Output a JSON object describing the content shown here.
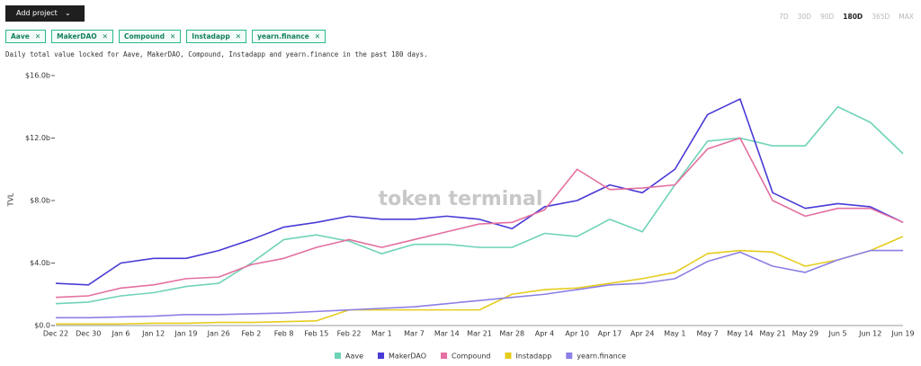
{
  "toolbar": {
    "add_project": "Add project",
    "ranges": [
      "7D",
      "30D",
      "90D",
      "180D",
      "365D",
      "MAX"
    ],
    "active_range": "180D"
  },
  "description": "Daily total value locked for Aave, MakerDAO, Compound, Instadapp and yearn.finance in the past 180 days.",
  "chart_data": {
    "type": "line",
    "ylabel": "TVL",
    "watermark": "token terminal",
    "grid": false,
    "categories": [
      "Dec 22",
      "Dec 30",
      "Jan 6",
      "Jan 12",
      "Jan 19",
      "Jan 26",
      "Feb 2",
      "Feb 8",
      "Feb 15",
      "Feb 22",
      "Mar 1",
      "Mar 7",
      "Mar 14",
      "Mar 21",
      "Mar 28",
      "Apr 4",
      "Apr 10",
      "Apr 17",
      "Apr 24",
      "May 1",
      "May 7",
      "May 14",
      "May 21",
      "May 29",
      "Jun 5",
      "Jun 12",
      "Jun 19"
    ],
    "ylim": [
      0,
      16
    ],
    "yticks": [
      {
        "value": 0,
        "label": "$0.0"
      },
      {
        "value": 4,
        "label": "$4.0b"
      },
      {
        "value": 8,
        "label": "$8.0b"
      },
      {
        "value": 12,
        "label": "$12.0b"
      },
      {
        "value": 16,
        "label": "$16.0b"
      }
    ],
    "series": [
      {
        "name": "Aave",
        "color": "#6fd3b8",
        "values": [
          1.4,
          1.5,
          1.9,
          2.1,
          2.5,
          2.7,
          4.0,
          5.5,
          5.8,
          5.4,
          4.6,
          5.2,
          5.2,
          5.0,
          5.0,
          5.9,
          5.7,
          6.8,
          6.0,
          9.0,
          11.8,
          12.0,
          11.5,
          11.5,
          14.0,
          13.0,
          11.0
        ]
      },
      {
        "name": "MakerDAO",
        "color": "#4a3bd6",
        "values": [
          2.7,
          2.6,
          4.0,
          4.3,
          4.3,
          4.8,
          5.5,
          6.3,
          6.6,
          7.0,
          6.8,
          6.8,
          7.0,
          6.8,
          6.2,
          7.6,
          8.0,
          9.0,
          8.5,
          10.0,
          13.5,
          14.5,
          8.5,
          7.5,
          7.8,
          7.6,
          6.6
        ]
      },
      {
        "name": "Compound",
        "color": "#e46fa0",
        "values": [
          1.8,
          1.9,
          2.4,
          2.6,
          3.0,
          3.1,
          3.9,
          4.3,
          5.0,
          5.5,
          5.0,
          5.5,
          6.0,
          6.5,
          6.6,
          7.4,
          10.0,
          8.7,
          8.8,
          9.0,
          11.3,
          12.0,
          8.0,
          7.0,
          7.5,
          7.5,
          6.6
        ]
      },
      {
        "name": "Instadapp",
        "color": "#e6cc1e",
        "values": [
          0.1,
          0.1,
          0.1,
          0.15,
          0.15,
          0.2,
          0.2,
          0.25,
          0.3,
          1.0,
          1.0,
          1.0,
          1.0,
          1.0,
          2.0,
          2.3,
          2.4,
          2.7,
          3.0,
          3.4,
          4.6,
          4.8,
          4.7,
          3.8,
          4.2,
          4.8,
          5.7
        ]
      },
      {
        "name": "yearn.finance",
        "color": "#8c7fe6",
        "values": [
          0.5,
          0.5,
          0.55,
          0.6,
          0.7,
          0.7,
          0.75,
          0.8,
          0.9,
          1.0,
          1.1,
          1.2,
          1.4,
          1.6,
          1.8,
          2.0,
          2.3,
          2.6,
          2.7,
          3.0,
          4.1,
          4.7,
          3.8,
          3.4,
          4.2,
          4.8,
          4.8
        ]
      }
    ]
  }
}
